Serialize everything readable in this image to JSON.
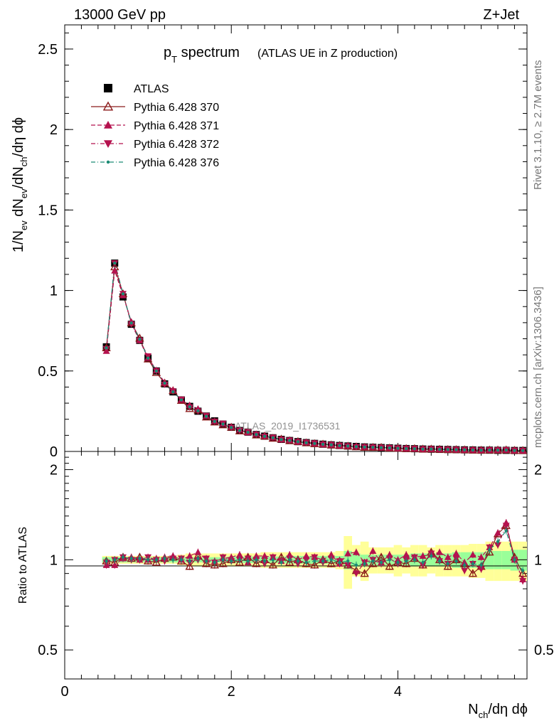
{
  "header": {
    "energy": "13000 GeV pp",
    "process": "Z+Jet"
  },
  "side_labels": {
    "rivet": "Rivet 3.1.10, ≥ 2.7M events",
    "mcplots": "mcplots.cern.ch [arXiv:1306.3436]"
  },
  "watermark": "ATLAS_2019_I1736531",
  "chart_data": {
    "type": "scatter",
    "title_main": "p",
    "title_sub": "T",
    "title_rest": " spectrum",
    "title_note": "(ATLAS UE in Z production)",
    "xlabel": "N_ch/dη dϕ",
    "ylabel": "1/N_ev dN_ev/dN_ch/dη dϕ",
    "ratio_ylabel": "Ratio to ATLAS",
    "xlim": [
      0,
      5.55
    ],
    "ylim": [
      0,
      2.65
    ],
    "ratio_ylim": [
      0.4,
      2.3
    ],
    "x_ticks": [
      "0",
      "2",
      "4"
    ],
    "y_ticks": [
      "0",
      "0.5",
      "1",
      "1.5",
      "2",
      "2.5"
    ],
    "ratio_y_ticks": [
      "0.5",
      "1",
      "2"
    ],
    "legend_placement": "top-left",
    "x": [
      0.5,
      0.6,
      0.7,
      0.8,
      0.9,
      1.0,
      1.1,
      1.2,
      1.3,
      1.4,
      1.5,
      1.6,
      1.7,
      1.8,
      1.9,
      2.0,
      2.1,
      2.2,
      2.3,
      2.4,
      2.5,
      2.6,
      2.7,
      2.8,
      2.9,
      3.0,
      3.1,
      3.2,
      3.3,
      3.4,
      3.5,
      3.6,
      3.7,
      3.8,
      3.9,
      4.0,
      4.1,
      4.2,
      4.3,
      4.4,
      4.5,
      4.6,
      4.7,
      4.8,
      4.9,
      5.0,
      5.1,
      5.2,
      5.3,
      5.4,
      5.5
    ],
    "data": [
      0.65,
      1.17,
      0.96,
      0.79,
      0.69,
      0.58,
      0.5,
      0.42,
      0.37,
      0.32,
      0.28,
      0.25,
      0.22,
      0.19,
      0.17,
      0.15,
      0.13,
      0.12,
      0.105,
      0.095,
      0.085,
      0.075,
      0.068,
      0.061,
      0.055,
      0.05,
      0.045,
      0.041,
      0.037,
      0.034,
      0.031,
      0.028,
      0.026,
      0.024,
      0.022,
      0.02,
      0.018,
      0.017,
      0.015,
      0.014,
      0.013,
      0.012,
      0.011,
      0.01,
      0.009,
      0.008,
      0.008,
      0.007,
      0.007,
      0.006,
      0.006
    ],
    "band_inner": [
      0.02,
      0.02,
      0.02,
      0.02,
      0.02,
      0.02,
      0.02,
      0.02,
      0.02,
      0.02,
      0.02,
      0.02,
      0.02,
      0.02,
      0.02,
      0.025,
      0.025,
      0.025,
      0.025,
      0.025,
      0.025,
      0.025,
      0.03,
      0.03,
      0.03,
      0.03,
      0.03,
      0.03,
      0.03,
      0.07,
      0.05,
      0.04,
      0.04,
      0.04,
      0.04,
      0.04,
      0.04,
      0.05,
      0.05,
      0.05,
      0.05,
      0.05,
      0.06,
      0.06,
      0.06,
      0.06,
      0.07,
      0.07,
      0.07,
      0.08,
      0.08
    ],
    "band_outer": [
      0.03,
      0.03,
      0.03,
      0.03,
      0.03,
      0.03,
      0.03,
      0.03,
      0.03,
      0.04,
      0.05,
      0.05,
      0.05,
      0.05,
      0.05,
      0.05,
      0.05,
      0.05,
      0.05,
      0.06,
      0.06,
      0.06,
      0.06,
      0.06,
      0.06,
      0.06,
      0.06,
      0.06,
      0.07,
      0.2,
      0.12,
      0.15,
      0.1,
      0.1,
      0.1,
      0.12,
      0.1,
      0.12,
      0.12,
      0.1,
      0.12,
      0.12,
      0.12,
      0.12,
      0.13,
      0.13,
      0.15,
      0.15,
      0.15,
      0.15,
      0.15
    ],
    "series": [
      {
        "name": "ATLAS",
        "marker": "square",
        "color": "#000000",
        "line": "none"
      },
      {
        "name": "Pythia 6.428 370",
        "marker": "triangle-up-open",
        "color": "#8b1a1a",
        "line": "solid",
        "ratio": [
          0.99,
          0.98,
          1.02,
          1.01,
          1.02,
          0.99,
          0.98,
          1.01,
          1.02,
          0.99,
          0.95,
          1.03,
          0.97,
          0.96,
          0.97,
          1.0,
          0.98,
          1.02,
          0.97,
          1.0,
          0.96,
          1.02,
          0.98,
          1.0,
          0.97,
          0.96,
          1.0,
          0.97,
          0.99,
          0.96,
          0.92,
          0.9,
          0.97,
          1.02,
          0.95,
          0.98,
          0.97,
          1.01,
          0.96,
          1.06,
          1.0,
          0.95,
          1.0,
          0.97,
          0.9,
          0.95,
          1.06,
          1.22,
          1.3,
          1.02,
          0.9
        ]
      },
      {
        "name": "Pythia 6.428 371",
        "marker": "triangle-up",
        "color": "#b5124e",
        "line": "dashed",
        "ratio": [
          0.96,
          0.96,
          1.01,
          1.02,
          1.0,
          1.0,
          1.01,
          1.02,
          1.03,
          1.0,
          1.03,
          1.06,
          1.0,
          0.99,
          1.01,
          1.02,
          1.04,
          0.98,
          1.03,
          1.03,
          1.02,
          0.99,
          1.04,
          1.0,
          1.03,
          1.02,
          1.0,
          1.04,
          0.97,
          1.05,
          1.06,
          0.98,
          1.07,
          0.98,
          1.04,
          1.0,
          1.04,
          1.02,
          1.03,
          1.04,
          1.06,
          1.02,
          1.05,
          0.98,
          1.04,
          1.02,
          1.1,
          1.23,
          1.33,
          1.0,
          0.86
        ]
      },
      {
        "name": "Pythia 6.428 372",
        "marker": "triangle-down",
        "color": "#b5124e",
        "line": "dash-dot",
        "ratio": [
          0.98,
          1.0,
          1.02,
          1.0,
          1.0,
          1.02,
          1.0,
          0.99,
          1.01,
          1.01,
          0.98,
          1.0,
          1.01,
          0.98,
          1.02,
          0.99,
          1.0,
          1.01,
          1.0,
          0.97,
          1.02,
          0.99,
          1.01,
          0.97,
          1.0,
          1.02,
          0.98,
          1.01,
          0.99,
          0.96,
          0.9,
          0.98,
          1.0,
          0.97,
          1.01,
          0.97,
          1.0,
          1.02,
          0.96,
          1.05,
          0.99,
          0.97,
          1.01,
          0.92,
          0.97,
          0.93,
          1.1,
          1.12,
          1.3,
          1.0,
          0.85
        ]
      },
      {
        "name": "Pythia 6.428 376",
        "marker": "dot",
        "color": "#1a8a73",
        "line": "dash-dot",
        "ratio": [
          0.99,
          1.0,
          1.02,
          1.01,
          1.01,
          1.0,
          1.0,
          1.01,
          1.0,
          1.0,
          0.99,
          1.01,
          0.99,
          0.98,
          1.0,
          0.99,
          1.0,
          0.99,
          1.0,
          0.99,
          1.0,
          0.98,
          1.0,
          0.99,
          0.98,
          0.99,
          0.99,
          1.0,
          0.98,
          0.99,
          0.96,
          0.97,
          0.99,
          0.98,
          1.0,
          0.98,
          0.99,
          1.0,
          0.98,
          1.03,
          0.99,
          0.97,
          0.99,
          0.96,
          0.97,
          0.96,
          1.08,
          1.15,
          1.25,
          1.0,
          0.92
        ]
      }
    ]
  }
}
